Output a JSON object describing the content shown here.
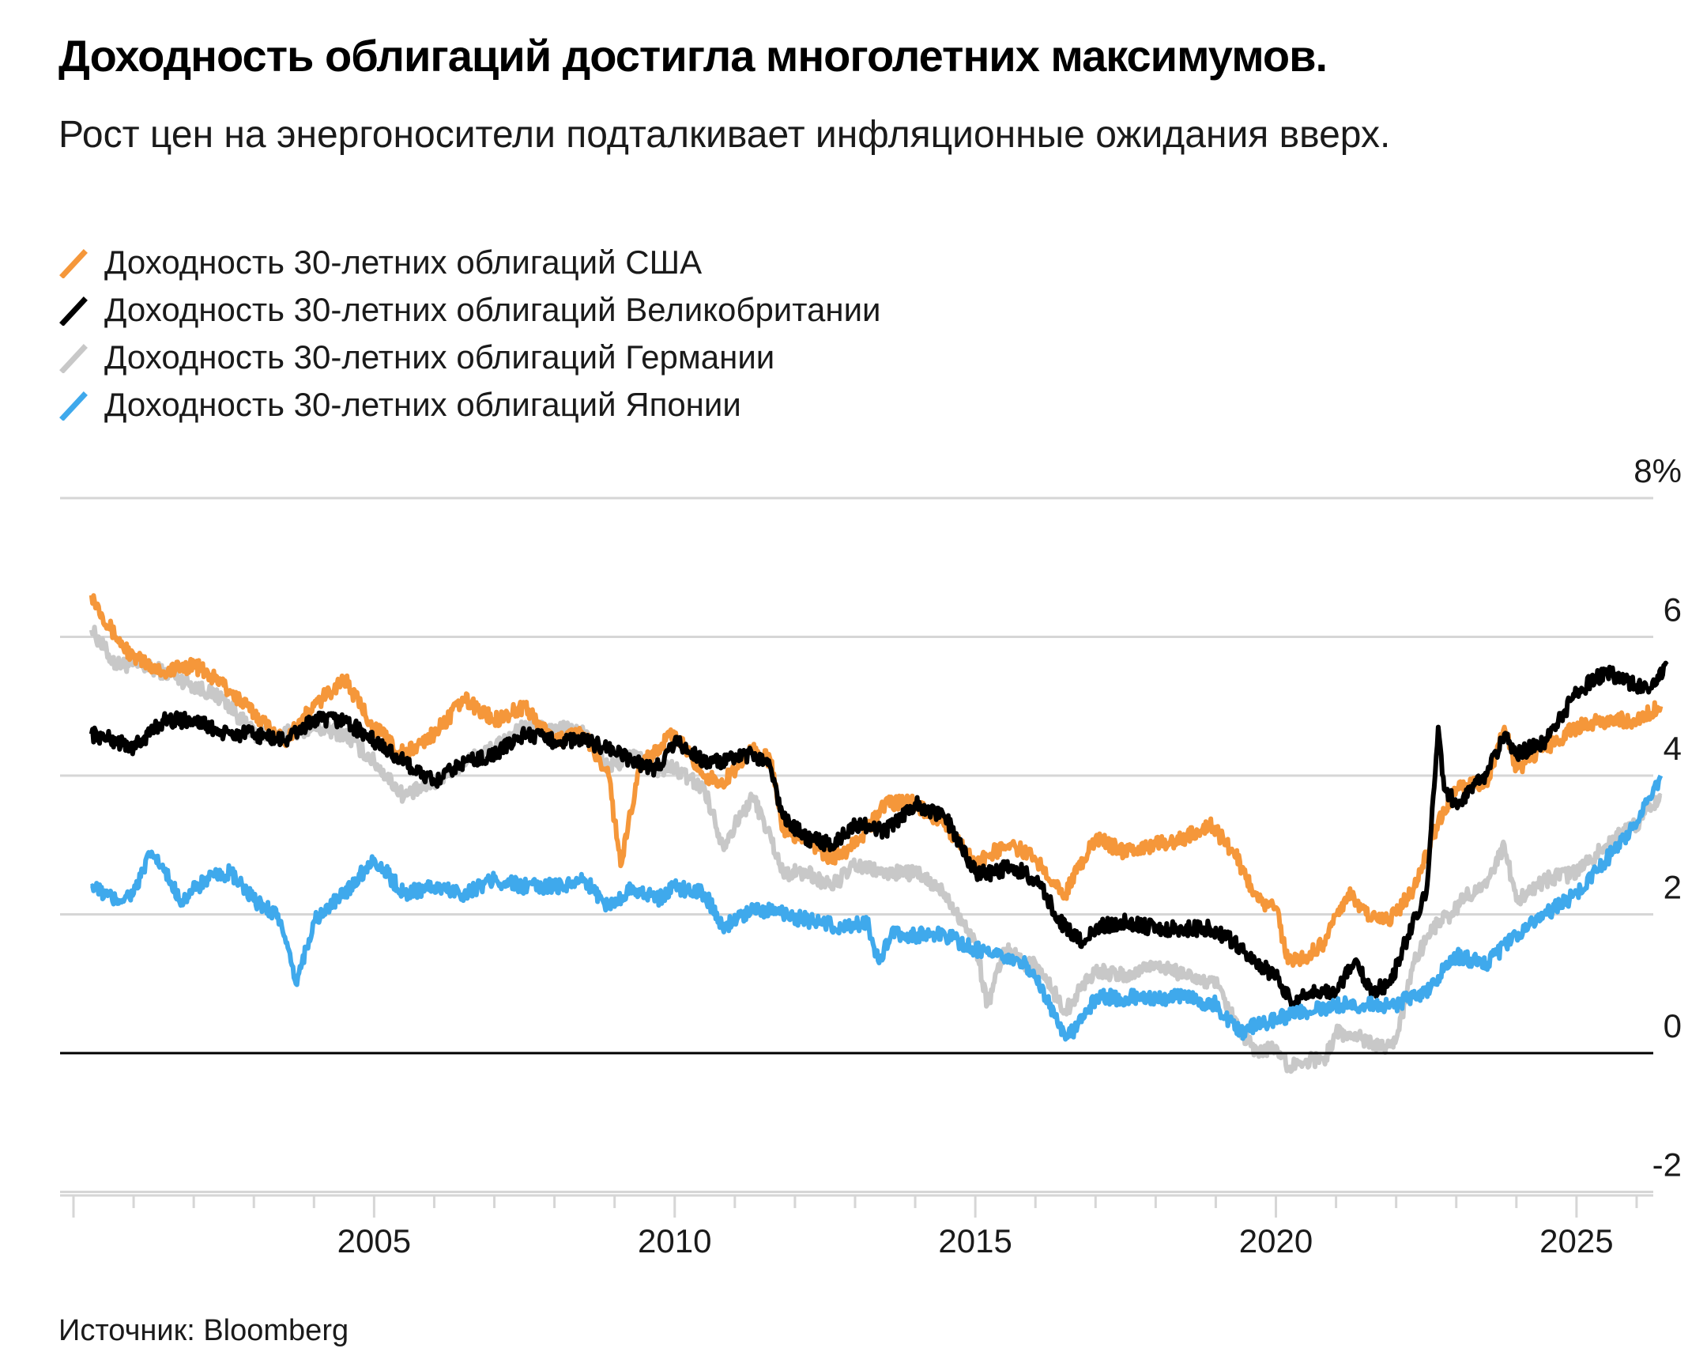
{
  "header": {
    "title": "Доходность облигаций достигла многолетних максимумов.",
    "subtitle": "Рост цен на энергоносители подталкивает инфляционные ожидания вверх."
  },
  "footer": {
    "source": "Источник: Bloomberg"
  },
  "colors": {
    "us": "#f5973a",
    "uk": "#000000",
    "de": "#c8c8c8",
    "jp": "#3fa9ec",
    "grid": "#d6d6d6",
    "zero": "#000000"
  },
  "chart_data": {
    "type": "line",
    "title": "Доходность облигаций достигла многолетних максимумов.",
    "subtitle": "Рост цен на энергоносители подталкивает инфляционные ожидания вверх.",
    "xlim": [
      2000.0,
      2026.5
    ],
    "ylim": [
      -2,
      8
    ],
    "y_ticks": [
      {
        "value": 8,
        "label": "8%"
      },
      {
        "value": 6,
        "label": "6"
      },
      {
        "value": 4,
        "label": "4"
      },
      {
        "value": 2,
        "label": "2"
      },
      {
        "value": 0,
        "label": "0"
      },
      {
        "value": -2,
        "label": "-2"
      }
    ],
    "x_ticks": [
      {
        "value": 2005,
        "label": "2005"
      },
      {
        "value": 2010,
        "label": "2010"
      },
      {
        "value": 2015,
        "label": "2015"
      },
      {
        "value": 2020,
        "label": "2020"
      },
      {
        "value": 2025,
        "label": "2025"
      }
    ],
    "grid": true,
    "y_axis_position": "right",
    "legend_position": "top-left",
    "series": [
      {
        "name": "Доходность 30-летних облигаций Германии",
        "key": "de",
        "x": [
          2000.3,
          2000.7,
          2001.0,
          2001.5,
          2002.0,
          2002.5,
          2003.0,
          2003.5,
          2004.0,
          2004.5,
          2005.0,
          2005.5,
          2006.0,
          2006.5,
          2007.0,
          2007.5,
          2008.0,
          2008.5,
          2008.9,
          2009.3,
          2009.7,
          2010.0,
          2010.5,
          2010.8,
          2011.3,
          2011.6,
          2011.8,
          2012.2,
          2012.6,
          2013.0,
          2013.5,
          2014.0,
          2014.5,
          2015.0,
          2015.2,
          2015.5,
          2015.8,
          2016.0,
          2016.5,
          2016.8,
          2017.0,
          2017.5,
          2018.0,
          2018.5,
          2019.0,
          2019.4,
          2019.7,
          2020.0,
          2020.2,
          2020.5,
          2020.8,
          2021.0,
          2021.5,
          2021.8,
          2022.0,
          2022.3,
          2022.6,
          2022.9,
          2023.2,
          2023.5,
          2023.8,
          2024.0,
          2024.5,
          2025.0,
          2025.5,
          2026.0,
          2026.4
        ],
        "y": [
          6.1,
          5.6,
          5.6,
          5.5,
          5.3,
          5.1,
          4.6,
          4.6,
          4.7,
          4.6,
          4.2,
          3.7,
          3.9,
          4.2,
          4.4,
          4.7,
          4.7,
          4.6,
          4.1,
          4.3,
          4.1,
          4.1,
          3.8,
          3.0,
          3.7,
          3.1,
          2.6,
          2.6,
          2.4,
          2.7,
          2.6,
          2.6,
          2.3,
          1.6,
          0.7,
          1.5,
          1.3,
          1.3,
          0.6,
          1.0,
          1.2,
          1.1,
          1.3,
          1.1,
          1.0,
          0.3,
          0.0,
          0.1,
          -0.2,
          -0.1,
          -0.1,
          0.3,
          0.2,
          0.1,
          0.2,
          1.3,
          1.8,
          2.0,
          2.3,
          2.4,
          3.0,
          2.2,
          2.5,
          2.6,
          3.0,
          3.3,
          3.7
        ]
      },
      {
        "name": "Доходность 30-летних облигаций США",
        "key": "us",
        "x": [
          2000.3,
          2000.7,
          2001.0,
          2001.5,
          2002.0,
          2002.5,
          2003.0,
          2003.5,
          2004.0,
          2004.5,
          2005.0,
          2005.5,
          2006.0,
          2006.5,
          2007.0,
          2007.5,
          2008.0,
          2008.5,
          2008.9,
          2009.1,
          2009.4,
          2009.7,
          2010.0,
          2010.5,
          2010.8,
          2011.3,
          2011.6,
          2011.8,
          2012.2,
          2012.6,
          2013.0,
          2013.5,
          2014.0,
          2014.5,
          2015.0,
          2015.3,
          2015.6,
          2016.0,
          2016.5,
          2016.8,
          2017.0,
          2017.5,
          2018.0,
          2018.5,
          2018.9,
          2019.3,
          2019.7,
          2020.0,
          2020.2,
          2020.5,
          2020.8,
          2021.2,
          2021.5,
          2021.8,
          2022.0,
          2022.3,
          2022.6,
          2022.8,
          2023.0,
          2023.5,
          2023.8,
          2024.0,
          2024.5,
          2025.0,
          2025.5,
          2026.0,
          2026.4
        ],
        "y": [
          6.6,
          6.0,
          5.7,
          5.5,
          5.6,
          5.3,
          4.9,
          4.5,
          5.0,
          5.4,
          4.7,
          4.3,
          4.6,
          5.1,
          4.8,
          5.0,
          4.5,
          4.6,
          4.0,
          2.7,
          4.1,
          4.4,
          4.6,
          4.0,
          3.9,
          4.4,
          4.2,
          3.2,
          3.1,
          2.8,
          3.0,
          3.6,
          3.6,
          3.3,
          2.7,
          2.9,
          3.0,
          2.8,
          2.3,
          2.8,
          3.1,
          2.9,
          3.0,
          3.1,
          3.3,
          2.9,
          2.2,
          2.1,
          1.3,
          1.4,
          1.6,
          2.3,
          2.0,
          1.9,
          2.0,
          2.4,
          3.1,
          3.5,
          3.8,
          3.9,
          4.7,
          4.1,
          4.4,
          4.7,
          4.8,
          4.8,
          5.0
        ]
      },
      {
        "name": "Доходность 30-летних облигаций Великобритании",
        "key": "uk",
        "x": [
          2000.3,
          2000.7,
          2001.0,
          2001.5,
          2002.0,
          2002.5,
          2003.0,
          2003.5,
          2004.0,
          2004.5,
          2005.0,
          2005.5,
          2006.0,
          2006.5,
          2007.0,
          2007.5,
          2008.0,
          2008.5,
          2008.9,
          2009.3,
          2009.7,
          2010.0,
          2010.5,
          2010.8,
          2011.3,
          2011.6,
          2011.8,
          2012.2,
          2012.6,
          2013.0,
          2013.5,
          2014.0,
          2014.5,
          2015.0,
          2015.3,
          2015.6,
          2016.0,
          2016.5,
          2016.8,
          2017.0,
          2017.5,
          2018.0,
          2018.5,
          2018.9,
          2019.3,
          2019.7,
          2020.0,
          2020.3,
          2020.6,
          2021.0,
          2021.3,
          2021.6,
          2021.9,
          2022.2,
          2022.5,
          2022.7,
          2022.8,
          2023.0,
          2023.5,
          2023.8,
          2024.0,
          2024.5,
          2025.0,
          2025.5,
          2026.0,
          2026.3,
          2026.5
        ],
        "y": [
          4.6,
          4.5,
          4.4,
          4.8,
          4.8,
          4.6,
          4.6,
          4.5,
          4.8,
          4.8,
          4.5,
          4.2,
          3.9,
          4.2,
          4.3,
          4.6,
          4.5,
          4.5,
          4.4,
          4.2,
          4.1,
          4.5,
          4.2,
          4.2,
          4.3,
          4.1,
          3.4,
          3.1,
          3.0,
          3.3,
          3.2,
          3.6,
          3.4,
          2.6,
          2.6,
          2.7,
          2.5,
          1.8,
          1.6,
          1.8,
          1.9,
          1.8,
          1.8,
          1.8,
          1.6,
          1.3,
          1.1,
          0.7,
          0.9,
          0.9,
          1.3,
          0.9,
          1.0,
          1.7,
          2.3,
          4.7,
          3.8,
          3.6,
          4.0,
          4.6,
          4.3,
          4.5,
          5.2,
          5.5,
          5.3,
          5.3,
          5.6
        ]
      },
      {
        "name": "Доходность 30-летних облигаций Японии",
        "key": "jp",
        "x": [
          2000.3,
          2000.7,
          2001.0,
          2001.3,
          2001.8,
          2002.2,
          2002.6,
          2003.0,
          2003.4,
          2003.7,
          2004.0,
          2004.5,
          2005.0,
          2005.5,
          2006.0,
          2006.5,
          2007.0,
          2007.5,
          2008.0,
          2008.5,
          2008.9,
          2009.3,
          2009.7,
          2010.0,
          2010.5,
          2010.8,
          2011.3,
          2011.8,
          2012.3,
          2012.8,
          2013.2,
          2013.4,
          2013.6,
          2014.0,
          2014.5,
          2015.0,
          2015.3,
          2015.8,
          2016.0,
          2016.5,
          2016.8,
          2017.0,
          2017.5,
          2018.0,
          2018.5,
          2019.0,
          2019.4,
          2019.7,
          2020.0,
          2020.5,
          2021.0,
          2021.5,
          2022.0,
          2022.5,
          2023.0,
          2023.5,
          2024.0,
          2024.5,
          2025.0,
          2025.5,
          2026.0,
          2026.4
        ],
        "y": [
          2.4,
          2.2,
          2.3,
          2.9,
          2.2,
          2.5,
          2.6,
          2.2,
          2.0,
          1.0,
          1.9,
          2.3,
          2.8,
          2.3,
          2.4,
          2.3,
          2.5,
          2.4,
          2.4,
          2.5,
          2.1,
          2.4,
          2.2,
          2.4,
          2.3,
          1.8,
          2.1,
          2.0,
          1.9,
          1.8,
          1.9,
          1.3,
          1.7,
          1.7,
          1.7,
          1.5,
          1.4,
          1.3,
          1.1,
          0.2,
          0.5,
          0.8,
          0.8,
          0.8,
          0.8,
          0.7,
          0.3,
          0.4,
          0.5,
          0.6,
          0.7,
          0.7,
          0.7,
          0.9,
          1.4,
          1.3,
          1.7,
          2.0,
          2.3,
          2.8,
          3.3,
          4.0
        ]
      }
    ]
  }
}
